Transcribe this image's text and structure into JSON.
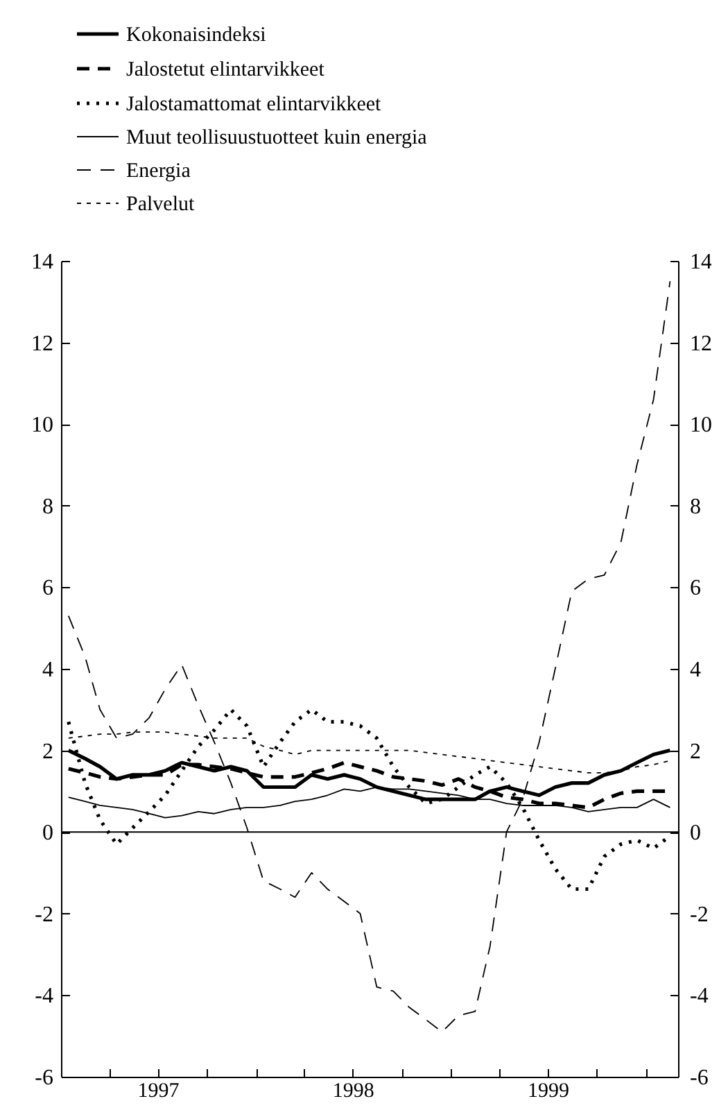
{
  "chart_data": {
    "type": "line",
    "x": [
      "1997-01-15",
      "1997-02-15",
      "1997-03-15",
      "1997-04-15",
      "1997-05-15",
      "1997-06-15",
      "1997-07-15",
      "1997-08-15",
      "1997-09-15",
      "1997-10-15",
      "1997-11-15",
      "1997-12-15",
      "1998-01-15",
      "1998-02-15",
      "1998-03-15",
      "1998-04-15",
      "1998-05-15",
      "1998-06-15",
      "1998-07-15",
      "1998-08-15",
      "1998-09-15",
      "1998-10-15",
      "1998-11-15",
      "1998-12-15",
      "1999-01-15",
      "1999-02-15",
      "1999-03-15",
      "1999-04-15",
      "1999-05-15",
      "1999-06-15",
      "1999-07-15",
      "1999-08-15",
      "1999-09-15",
      "1999-10-15",
      "1999-11-15",
      "1999-12-15",
      "2000-01-15",
      "2000-02-15"
    ],
    "series": [
      {
        "name": "Kokonaisindeksi",
        "color": "#000000",
        "line_style": "solid",
        "values": [
          2.0,
          1.8,
          1.6,
          1.3,
          1.4,
          1.4,
          1.5,
          1.7,
          1.6,
          1.5,
          1.6,
          1.5,
          1.1,
          1.1,
          1.1,
          1.4,
          1.3,
          1.4,
          1.3,
          1.1,
          1.0,
          0.9,
          0.8,
          0.8,
          0.8,
          0.8,
          1.0,
          1.1,
          1.0,
          0.9,
          1.1,
          1.2,
          1.2,
          1.4,
          1.5,
          1.7,
          1.9,
          2.0
        ]
      },
      {
        "name": "Jalostetut elintarvikkeet",
        "color": "#000000",
        "line_style": "dashed",
        "values": [
          1.55,
          1.45,
          1.35,
          1.3,
          1.35,
          1.4,
          1.4,
          1.65,
          1.65,
          1.6,
          1.55,
          1.45,
          1.35,
          1.35,
          1.35,
          1.45,
          1.55,
          1.7,
          1.6,
          1.5,
          1.35,
          1.3,
          1.25,
          1.15,
          1.3,
          1.1,
          1.0,
          0.85,
          0.8,
          0.7,
          0.7,
          0.65,
          0.6,
          0.8,
          0.95,
          1.0,
          1.0,
          1.0
        ]
      },
      {
        "name": "Jalostamattomat elintarvikkeet",
        "color": "#000000",
        "line_style": "dotted",
        "values": [
          2.7,
          1.2,
          0.3,
          -0.3,
          0.1,
          0.5,
          0.9,
          1.5,
          2.1,
          2.5,
          3.0,
          2.6,
          1.6,
          2.2,
          2.7,
          3.0,
          2.7,
          2.7,
          2.6,
          2.3,
          1.6,
          1.1,
          0.7,
          0.8,
          1.1,
          1.4,
          1.6,
          1.2,
          0.6,
          -0.2,
          -0.9,
          -1.4,
          -1.4,
          -0.6,
          -0.3,
          -0.2,
          -0.4,
          -0.1
        ]
      },
      {
        "name": "Muut teollisuustuotteet kuin energia",
        "color": "#000000",
        "line_style": "solid",
        "values": [
          0.85,
          0.75,
          0.65,
          0.6,
          0.55,
          0.45,
          0.35,
          0.4,
          0.5,
          0.45,
          0.55,
          0.6,
          0.6,
          0.65,
          0.75,
          0.8,
          0.9,
          1.05,
          1.0,
          1.1,
          1.05,
          1.05,
          1.0,
          0.95,
          0.9,
          0.8,
          0.8,
          0.7,
          0.65,
          0.65,
          0.65,
          0.6,
          0.5,
          0.55,
          0.6,
          0.6,
          0.8,
          0.6
        ]
      },
      {
        "name": "Energia",
        "color": "#000000",
        "line_style": "dashed",
        "values": [
          5.3,
          4.3,
          3.0,
          2.3,
          2.4,
          2.8,
          3.5,
          4.1,
          3.1,
          2.2,
          1.2,
          0.1,
          -1.2,
          -1.4,
          -1.6,
          -1.0,
          -1.4,
          -1.7,
          -2.0,
          -3.8,
          -3.9,
          -4.3,
          -4.6,
          -4.9,
          -4.5,
          -4.4,
          -2.8,
          0.0,
          0.8,
          2.2,
          4.0,
          5.9,
          6.2,
          6.3,
          7.1,
          9.0,
          10.6,
          13.5
        ]
      },
      {
        "name": "Palvelut",
        "color": "#000000",
        "line_style": "dotted",
        "values": [
          2.3,
          2.35,
          2.4,
          2.4,
          2.45,
          2.45,
          2.45,
          2.4,
          2.35,
          2.3,
          2.3,
          2.3,
          2.1,
          2.0,
          1.9,
          2.0,
          2.0,
          2.0,
          2.0,
          2.0,
          2.0,
          2.0,
          1.95,
          1.9,
          1.85,
          1.8,
          1.75,
          1.7,
          1.65,
          1.6,
          1.55,
          1.5,
          1.45,
          1.45,
          1.5,
          1.6,
          1.65,
          1.75
        ]
      }
    ],
    "xlim": [
      "1997-01-01",
      "2000-03-01"
    ],
    "xticks": [
      {
        "value": "1997-04-01",
        "label": null
      },
      {
        "value": "1997-07-01",
        "label": "1997"
      },
      {
        "value": "1997-10-01",
        "label": null
      },
      {
        "value": "1998-01-01",
        "label": null
      },
      {
        "value": "1998-04-01",
        "label": null
      },
      {
        "value": "1998-07-01",
        "label": "1998"
      },
      {
        "value": "1998-10-01",
        "label": null
      },
      {
        "value": "1999-01-01",
        "label": null
      },
      {
        "value": "1999-04-01",
        "label": null
      },
      {
        "value": "1999-07-01",
        "label": "1999"
      },
      {
        "value": "1999-10-01",
        "label": null
      },
      {
        "value": "2000-01-01",
        "label": null
      }
    ],
    "ylim": [
      -6,
      14
    ],
    "yticks": [
      -6,
      -4,
      -2,
      0,
      2,
      4,
      6,
      8,
      10,
      12,
      14
    ],
    "y2lim": [
      -6,
      14
    ],
    "y2ticks": [
      -6,
      -4,
      -2,
      0,
      2,
      4,
      6,
      8,
      10,
      12,
      14
    ],
    "ref_lines": [
      {
        "axis": "y",
        "value": 0,
        "color": "#000000"
      }
    ],
    "legend": "top left",
    "grid": false
  }
}
